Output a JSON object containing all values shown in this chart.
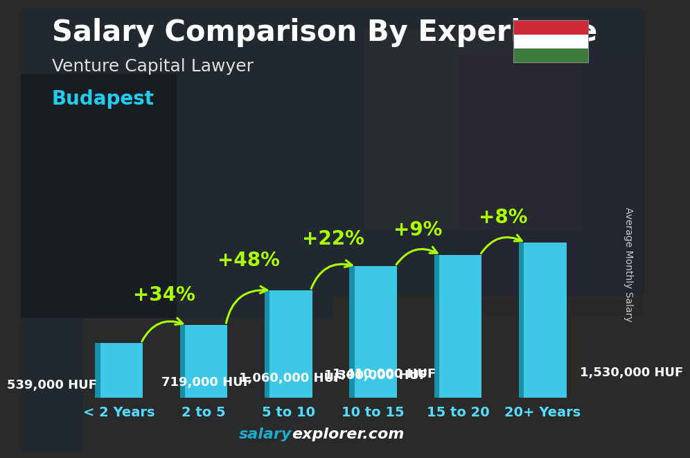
{
  "title": "Salary Comparison By Experience",
  "subtitle": "Venture Capital Lawyer",
  "city": "Budapest",
  "ylabel": "Average Monthly Salary",
  "categories": [
    "< 2 Years",
    "2 to 5",
    "5 to 10",
    "10 to 15",
    "15 to 20",
    "20+ Years"
  ],
  "values": [
    539000,
    719000,
    1060000,
    1300000,
    1410000,
    1530000
  ],
  "value_labels": [
    "539,000 HUF",
    "719,000 HUF",
    "1,060,000 HUF",
    "1,300,000 HUF",
    "1,410,000 HUF",
    "1,530,000 HUF"
  ],
  "pct_labels": [
    "+34%",
    "+48%",
    "+22%",
    "+9%",
    "+8%"
  ],
  "bar_front_color": "#3ec8e8",
  "bar_left_color": "#1a8faa",
  "bar_top_color": "#70ddee",
  "bg_color": "#2a2a2a",
  "title_color": "#ffffff",
  "subtitle_color": "#e0e0e0",
  "city_color": "#22ccee",
  "value_color": "#ffffff",
  "pct_color": "#aaff00",
  "arrow_color": "#aaff00",
  "ylabel_color": "#cccccc",
  "wm_salary_color": "#22aacc",
  "wm_rest_color": "#ffffff",
  "flag_red": "#ce2939",
  "flag_white": "#ffffff",
  "flag_green": "#3d7a3d",
  "cat_color": "#55ddff",
  "title_fs": 30,
  "subtitle_fs": 18,
  "city_fs": 20,
  "pct_fs": 20,
  "val_fs": 13,
  "cat_fs": 14,
  "ylabel_fs": 10,
  "wm_fs": 16
}
